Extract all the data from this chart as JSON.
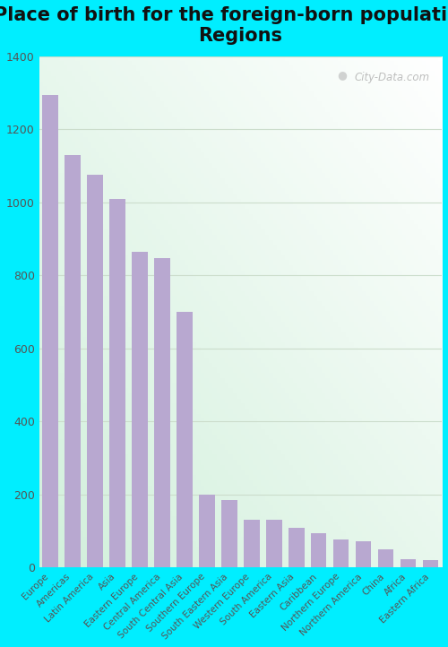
{
  "title": "Place of birth for the foreign-born population -\nRegions",
  "categories": [
    "Europe",
    "Americas",
    "Latin America",
    "Asia",
    "Eastern Europe",
    "Central America",
    "South Central Asia",
    "Southern Europe",
    "South Eastern Asia",
    "Western Europe",
    "South America",
    "Eastern Asia",
    "Caribbean",
    "Northern Europe",
    "Northern America",
    "China",
    "Africa",
    "Eastern Africa"
  ],
  "values": [
    1295,
    1130,
    1075,
    1010,
    865,
    848,
    700,
    200,
    185,
    130,
    130,
    110,
    95,
    78,
    72,
    50,
    22,
    20
  ],
  "bar_color": "#b8a8d0",
  "outer_background": "#00eeff",
  "ylim": [
    0,
    1400
  ],
  "yticks": [
    0,
    200,
    400,
    600,
    800,
    1000,
    1200,
    1400
  ],
  "title_fontsize": 15,
  "tick_label_fontsize": 7.5,
  "ytick_fontsize": 9,
  "watermark": "City-Data.com",
  "grid_color": "#ccddcc",
  "title_color": "#111111",
  "tick_color": "#555555"
}
